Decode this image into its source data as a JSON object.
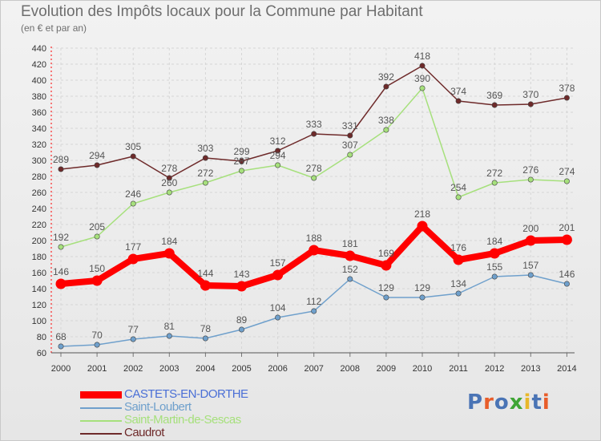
{
  "header": {
    "title": "Evolution des Impôts locaux pour la Commune par Habitant",
    "subtitle": "(en € et par an)"
  },
  "brand": {
    "text": "Proxiti",
    "letter_colors": [
      "#4a74b5",
      "#e85d2a",
      "#4a74b5",
      "#3fa535",
      "#e8b72a",
      "#4a74b5",
      "#e85d2a"
    ]
  },
  "chart_data": {
    "type": "line",
    "x": [
      "2000",
      "2001",
      "2002",
      "2003",
      "2004",
      "2005",
      "2006",
      "2007",
      "2008",
      "2009",
      "2010",
      "2011",
      "2012",
      "2013",
      "2014"
    ],
    "ylim": [
      60,
      440
    ],
    "yticks": [
      60,
      80,
      100,
      120,
      140,
      160,
      180,
      200,
      220,
      240,
      260,
      280,
      300,
      320,
      340,
      360,
      380,
      400,
      420,
      440
    ],
    "grid": true,
    "legend_position": "bottom",
    "series": [
      {
        "name": "CASTETS-EN-DORTHE",
        "color": "#ff0000",
        "values": [
          146,
          150,
          177,
          184,
          144,
          143,
          157,
          188,
          181,
          169,
          218,
          176,
          184,
          200,
          201
        ],
        "highlight": true
      },
      {
        "name": "Saint-Loubert",
        "color": "#6fa0cc",
        "values": [
          68,
          70,
          77,
          81,
          78,
          89,
          104,
          112,
          152,
          129,
          129,
          134,
          155,
          157,
          146
        ],
        "highlight": false
      },
      {
        "name": "Saint-Martin-de-Sescas",
        "color": "#a6e07c",
        "values": [
          192,
          205,
          246,
          260,
          272,
          287,
          294,
          278,
          307,
          338,
          390,
          254,
          272,
          276,
          274
        ],
        "highlight": false
      },
      {
        "name": "Caudrot",
        "color": "#6e2a2a",
        "values": [
          289,
          294,
          305,
          278,
          303,
          299,
          312,
          333,
          331,
          392,
          418,
          374,
          369,
          370,
          378
        ],
        "highlight": false
      }
    ]
  }
}
